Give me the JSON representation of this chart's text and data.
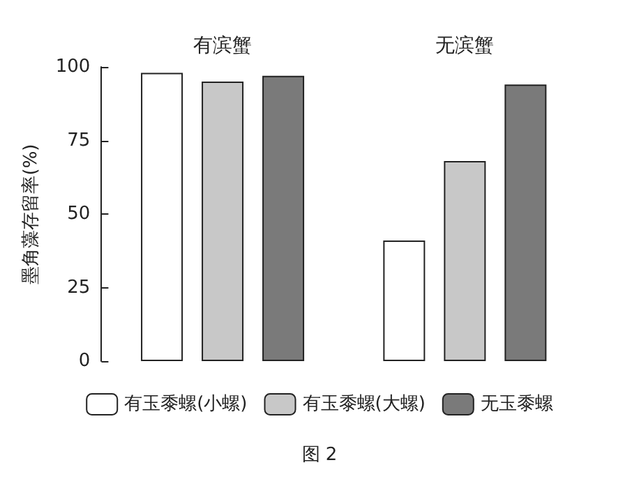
{
  "chart_data": {
    "type": "bar",
    "categories": [
      "有滨蟹",
      "无滨蟹"
    ],
    "ylabel": "墨角藻存留率(%)",
    "ylim": [
      0,
      100
    ],
    "yticks": [
      0,
      25,
      50,
      75,
      100
    ],
    "grid": false,
    "legend": "bottom",
    "annotations": [
      "图 2"
    ],
    "series": [
      {
        "name": "有玉黍螺(小螺)",
        "color": "#ffffff",
        "values": [
          98,
          41
        ]
      },
      {
        "name": "有玉黍螺(大螺)",
        "color": "#c8c8c8",
        "values": [
          95,
          68
        ]
      },
      {
        "name": "无玉黍螺",
        "color": "#7a7a7a",
        "values": [
          97,
          94
        ]
      }
    ]
  }
}
